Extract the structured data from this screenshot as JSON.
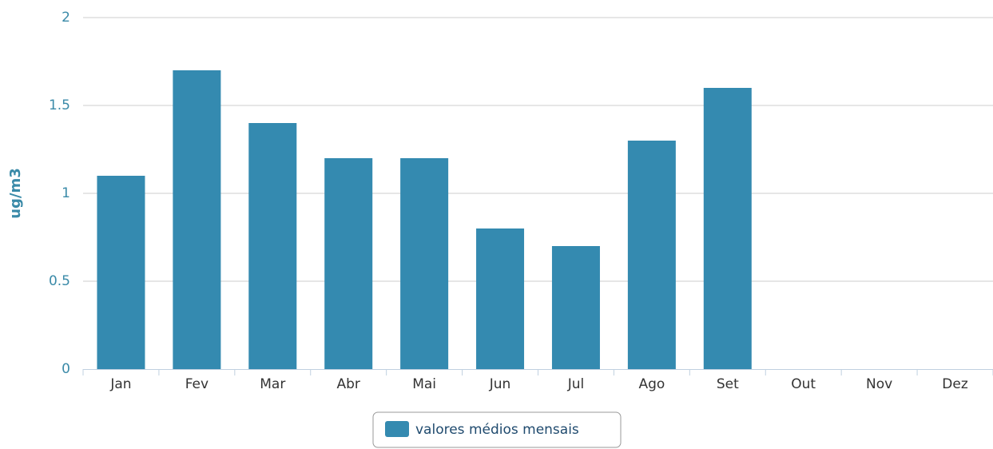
{
  "chart_data": {
    "type": "bar",
    "ylabel": "ug/m3",
    "categories": [
      "Jan",
      "Fev",
      "Mar",
      "Abr",
      "Mai",
      "Jun",
      "Jul",
      "Ago",
      "Set",
      "Out",
      "Nov",
      "Dez"
    ],
    "series": [
      {
        "name": "valores médios mensais",
        "color": "#348ab0",
        "values": [
          1.1,
          1.7,
          1.4,
          1.2,
          1.2,
          0.8,
          0.7,
          1.3,
          1.6,
          null,
          null,
          null
        ]
      }
    ],
    "ylim": [
      0,
      2
    ],
    "yticks": [
      0,
      0.5,
      1,
      1.5,
      2
    ],
    "grid": true,
    "legend": "bottom"
  }
}
